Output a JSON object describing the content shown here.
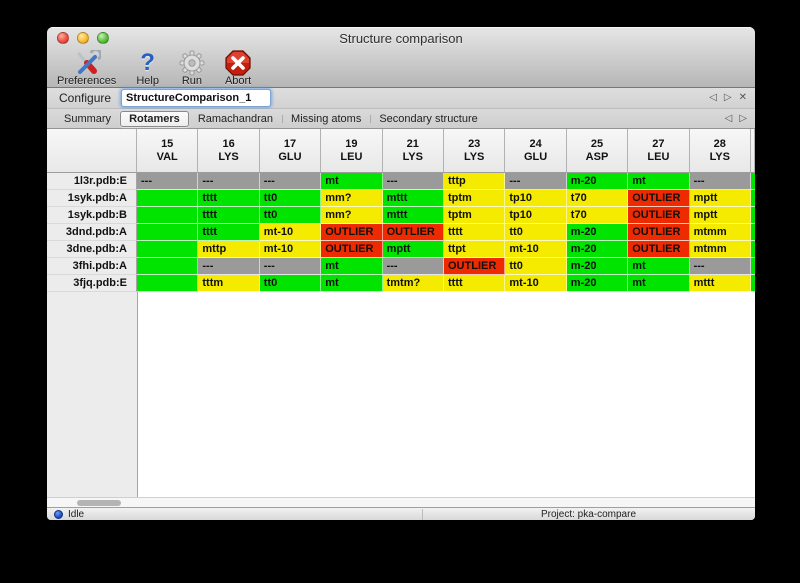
{
  "window": {
    "title": "Structure comparison"
  },
  "toolbar": {
    "items": [
      {
        "label": "Preferences",
        "icon": "tools-icon"
      },
      {
        "label": "Help",
        "icon": "help-icon"
      },
      {
        "label": "Run",
        "icon": "gear-icon"
      },
      {
        "label": "Abort",
        "icon": "abort-icon"
      }
    ]
  },
  "configure": {
    "label": "Configure",
    "value": "StructureComparison_1"
  },
  "nav_icons": {
    "left": "◁",
    "right": "▷",
    "close": "✕",
    "help_glyph": "?"
  },
  "tabs": [
    "Summary",
    "Rotamers",
    "Ramachandran",
    "Missing atoms",
    "Secondary structure"
  ],
  "active_tab": "Rotamers",
  "colors": {
    "green": "#00e400",
    "yellow": "#f5eb00",
    "red": "#ee2b00",
    "gray": "#9a9a9a"
  },
  "table": {
    "columns": [
      {
        "num": "15",
        "res": "VAL"
      },
      {
        "num": "16",
        "res": "LYS"
      },
      {
        "num": "17",
        "res": "GLU"
      },
      {
        "num": "19",
        "res": "LEU"
      },
      {
        "num": "21",
        "res": "LYS"
      },
      {
        "num": "23",
        "res": "LYS"
      },
      {
        "num": "24",
        "res": "GLU"
      },
      {
        "num": "25",
        "res": "ASP"
      },
      {
        "num": "27",
        "res": "LEU"
      },
      {
        "num": "28",
        "res": "LYS"
      }
    ],
    "rows": [
      {
        "label": "1l3r.pdb:E",
        "cells": [
          {
            "t": "---",
            "c": "gray"
          },
          {
            "t": "---",
            "c": "gray"
          },
          {
            "t": "---",
            "c": "gray"
          },
          {
            "t": "mt",
            "c": "green"
          },
          {
            "t": "---",
            "c": "gray"
          },
          {
            "t": "tttp",
            "c": "yellow"
          },
          {
            "t": "---",
            "c": "gray"
          },
          {
            "t": "m-20",
            "c": "green"
          },
          {
            "t": "mt",
            "c": "green"
          },
          {
            "t": "---",
            "c": "gray"
          }
        ]
      },
      {
        "label": "1syk.pdb:A",
        "cells": [
          {
            "t": "",
            "c": "green"
          },
          {
            "t": "tttt",
            "c": "green"
          },
          {
            "t": "tt0",
            "c": "green"
          },
          {
            "t": "mm?",
            "c": "yellow"
          },
          {
            "t": "mttt",
            "c": "green"
          },
          {
            "t": "tptm",
            "c": "yellow"
          },
          {
            "t": "tp10",
            "c": "yellow"
          },
          {
            "t": "t70",
            "c": "yellow"
          },
          {
            "t": "OUTLIER",
            "c": "red"
          },
          {
            "t": "mptt",
            "c": "yellow"
          }
        ]
      },
      {
        "label": "1syk.pdb:B",
        "cells": [
          {
            "t": "",
            "c": "green"
          },
          {
            "t": "tttt",
            "c": "green"
          },
          {
            "t": "tt0",
            "c": "green"
          },
          {
            "t": "mm?",
            "c": "yellow"
          },
          {
            "t": "mttt",
            "c": "green"
          },
          {
            "t": "tptm",
            "c": "yellow"
          },
          {
            "t": "tp10",
            "c": "yellow"
          },
          {
            "t": "t70",
            "c": "yellow"
          },
          {
            "t": "OUTLIER",
            "c": "red"
          },
          {
            "t": "mptt",
            "c": "yellow"
          }
        ]
      },
      {
        "label": "3dnd.pdb:A",
        "cells": [
          {
            "t": "",
            "c": "green"
          },
          {
            "t": "tttt",
            "c": "green"
          },
          {
            "t": "mt-10",
            "c": "yellow"
          },
          {
            "t": "OUTLIER",
            "c": "red"
          },
          {
            "t": "OUTLIER",
            "c": "red"
          },
          {
            "t": "tttt",
            "c": "yellow"
          },
          {
            "t": "tt0",
            "c": "yellow"
          },
          {
            "t": "m-20",
            "c": "green"
          },
          {
            "t": "OUTLIER",
            "c": "red"
          },
          {
            "t": "mtmm",
            "c": "yellow"
          }
        ]
      },
      {
        "label": "3dne.pdb:A",
        "cells": [
          {
            "t": "",
            "c": "green"
          },
          {
            "t": "mttp",
            "c": "yellow"
          },
          {
            "t": "mt-10",
            "c": "yellow"
          },
          {
            "t": "OUTLIER",
            "c": "red"
          },
          {
            "t": "mptt",
            "c": "green"
          },
          {
            "t": "ttpt",
            "c": "yellow"
          },
          {
            "t": "mt-10",
            "c": "yellow"
          },
          {
            "t": "m-20",
            "c": "green"
          },
          {
            "t": "OUTLIER",
            "c": "red"
          },
          {
            "t": "mtmm",
            "c": "yellow"
          }
        ]
      },
      {
        "label": "3fhi.pdb:A",
        "cells": [
          {
            "t": "",
            "c": "green"
          },
          {
            "t": "---",
            "c": "gray"
          },
          {
            "t": "---",
            "c": "gray"
          },
          {
            "t": "mt",
            "c": "green"
          },
          {
            "t": "---",
            "c": "gray"
          },
          {
            "t": "OUTLIER",
            "c": "red"
          },
          {
            "t": "tt0",
            "c": "yellow"
          },
          {
            "t": "m-20",
            "c": "green"
          },
          {
            "t": "mt",
            "c": "green"
          },
          {
            "t": "---",
            "c": "gray"
          }
        ]
      },
      {
        "label": "3fjq.pdb:E",
        "cells": [
          {
            "t": "",
            "c": "green"
          },
          {
            "t": "tttm",
            "c": "yellow"
          },
          {
            "t": "tt0",
            "c": "green"
          },
          {
            "t": "mt",
            "c": "green"
          },
          {
            "t": "tmtm?",
            "c": "yellow"
          },
          {
            "t": "tttt",
            "c": "yellow"
          },
          {
            "t": "mt-10",
            "c": "yellow"
          },
          {
            "t": "m-20",
            "c": "green"
          },
          {
            "t": "mt",
            "c": "green"
          },
          {
            "t": "mttt",
            "c": "yellow"
          }
        ]
      }
    ],
    "clipped_column_color": "green"
  },
  "status": {
    "left": "Idle",
    "right": "Project: pka-compare"
  }
}
